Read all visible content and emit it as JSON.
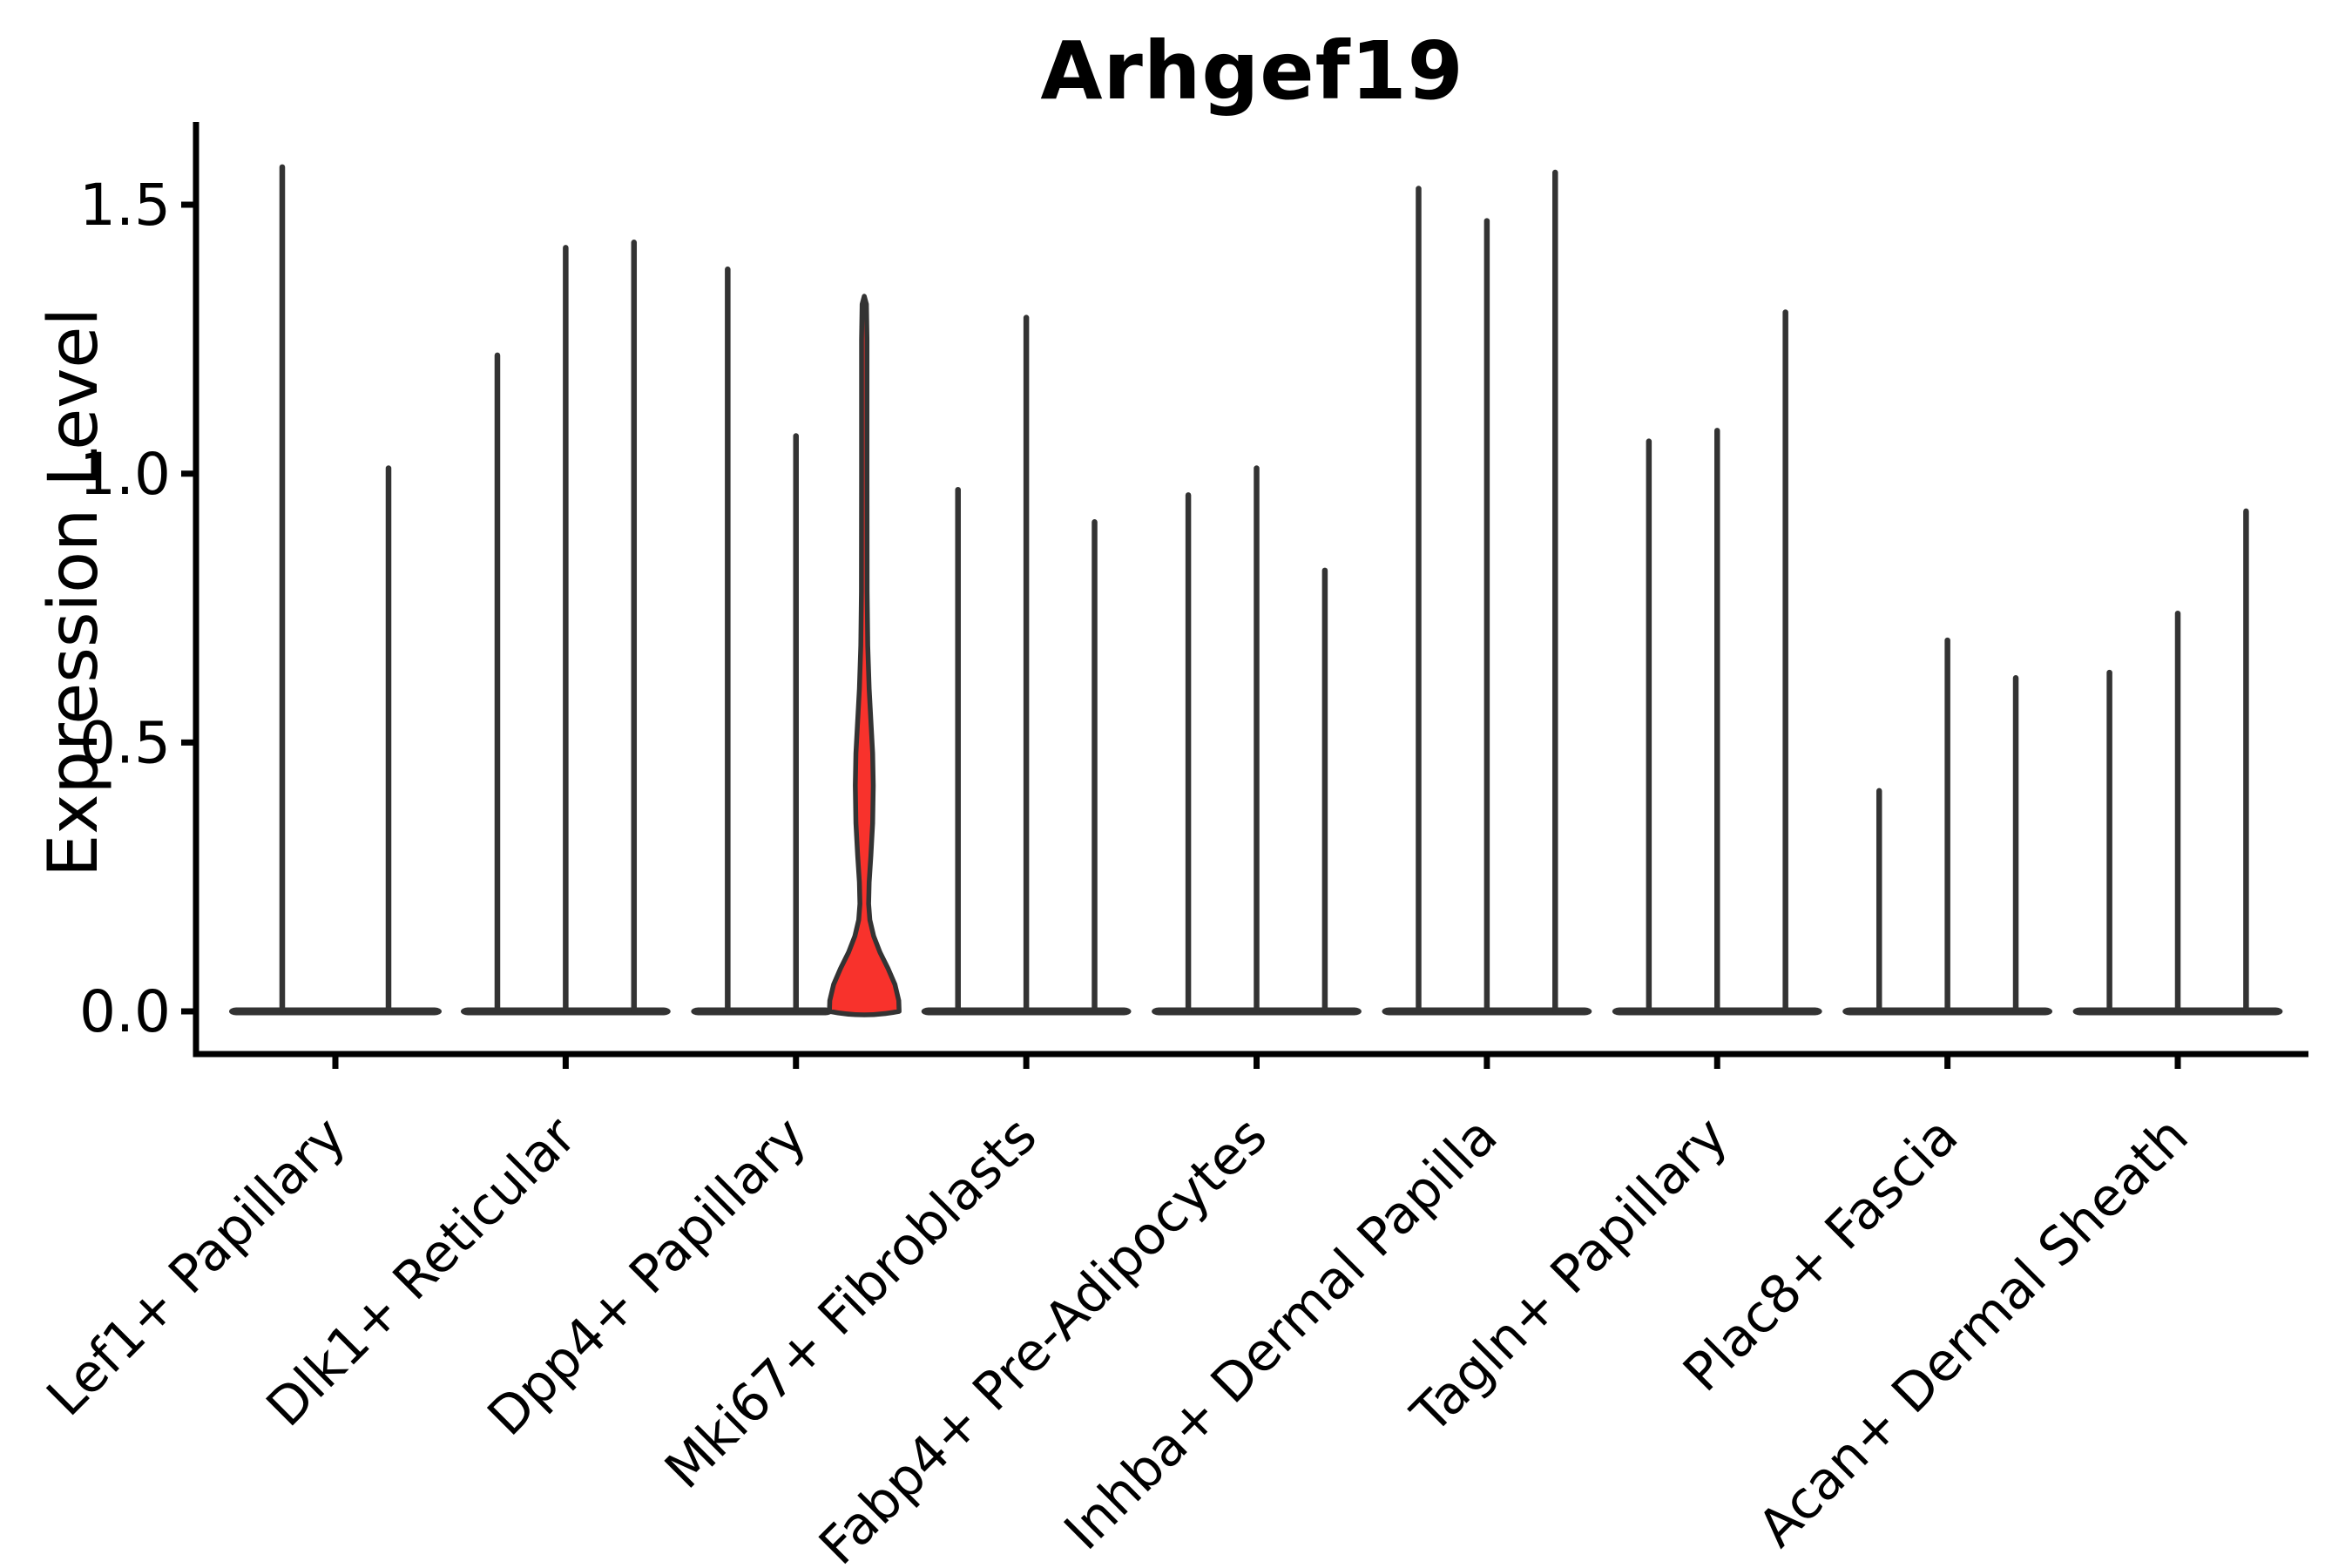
{
  "chart_data": {
    "type": "violin",
    "title": "Arhgef19",
    "ylabel": "Expression Level",
    "xlabel": "",
    "ylim": [
      -0.08,
      1.66
    ],
    "yticks": [
      0.0,
      0.5,
      1.0,
      1.5
    ],
    "grid": false,
    "legend": "none",
    "categories": [
      "Lef1+ Papillary",
      "Dlk1+ Reticular",
      "Dpp4+ Papillary",
      "Mki67+ Fibroblasts",
      "Fabp4+ Pre-Adipocytes",
      "Inhba+ Dermal Papilla",
      "Tagln+ Papillary",
      "Plac8+ Fascia",
      "Acan+ Dermal Sheath"
    ],
    "groups": [
      {
        "category": "Lef1+ Papillary",
        "violins": [
          {
            "max": 1.57
          },
          {
            "max": 1.01
          }
        ]
      },
      {
        "category": "Dlk1+ Reticular",
        "violins": [
          {
            "max": 1.22
          },
          {
            "max": 1.42
          },
          {
            "max": 1.43
          }
        ]
      },
      {
        "category": "Dpp4+ Papillary",
        "violins": [
          {
            "max": 1.38
          },
          {
            "max": 1.07
          },
          {
            "max": 1.33,
            "highlight": true
          }
        ]
      },
      {
        "category": "Mki67+ Fibroblasts",
        "violins": [
          {
            "max": 0.97
          },
          {
            "max": 1.29
          },
          {
            "max": 0.91
          }
        ]
      },
      {
        "category": "Fabp4+ Pre-Adipocytes",
        "violins": [
          {
            "max": 0.96
          },
          {
            "max": 1.01
          },
          {
            "max": 0.82
          }
        ]
      },
      {
        "category": "Inhba+ Dermal Papilla",
        "violins": [
          {
            "max": 1.53
          },
          {
            "max": 1.47
          },
          {
            "max": 1.56
          }
        ]
      },
      {
        "category": "Tagln+ Papillary",
        "violins": [
          {
            "max": 1.06
          },
          {
            "max": 1.08
          },
          {
            "max": 1.3
          }
        ]
      },
      {
        "category": "Plac8+ Fascia",
        "violins": [
          {
            "max": 0.41
          },
          {
            "max": 0.69
          },
          {
            "max": 0.62
          }
        ]
      },
      {
        "category": "Acan+ Dermal Sheath",
        "violins": [
          {
            "max": 0.63
          },
          {
            "max": 0.74
          },
          {
            "max": 0.93
          }
        ]
      }
    ],
    "highlight_profile": [
      [
        0.0,
        1.0
      ],
      [
        0.02,
        0.99
      ],
      [
        0.05,
        0.88
      ],
      [
        0.08,
        0.68
      ],
      [
        0.11,
        0.45
      ],
      [
        0.14,
        0.27
      ],
      [
        0.17,
        0.16
      ],
      [
        0.2,
        0.125
      ],
      [
        0.24,
        0.14
      ],
      [
        0.29,
        0.19
      ],
      [
        0.35,
        0.24
      ],
      [
        0.42,
        0.258
      ],
      [
        0.48,
        0.24
      ],
      [
        0.54,
        0.19
      ],
      [
        0.6,
        0.14
      ],
      [
        0.68,
        0.1
      ],
      [
        0.78,
        0.082
      ],
      [
        1.0,
        0.078
      ],
      [
        1.25,
        0.078
      ],
      [
        1.315,
        0.062
      ],
      [
        1.33,
        0.0
      ]
    ],
    "colors": {
      "highlight_fill": "#f8322c",
      "violin_line": "#333333",
      "axis": "#000000",
      "text": "#000000",
      "background": "#ffffff"
    }
  }
}
